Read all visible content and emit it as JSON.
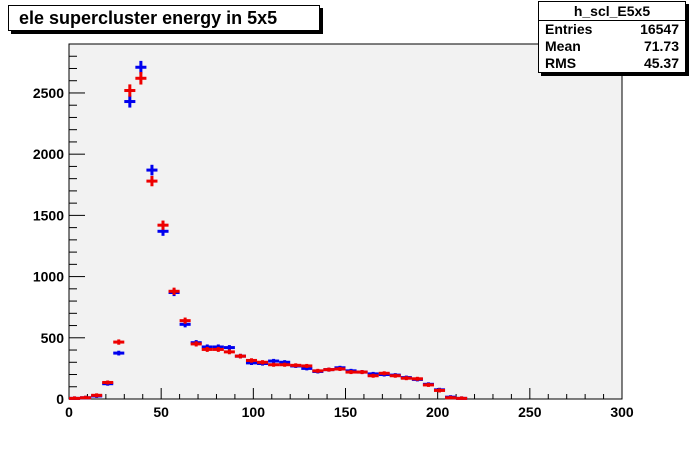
{
  "chart_data": {
    "type": "scatter",
    "title": "ele supercluster energy in 5x5",
    "xlabel": "",
    "ylabel": "",
    "xlim": [
      0,
      300
    ],
    "ylim": [
      0,
      2900
    ],
    "x_ticks": [
      0,
      50,
      100,
      150,
      200,
      250,
      300
    ],
    "y_ticks": [
      0,
      500,
      1000,
      1500,
      2000,
      2500
    ],
    "bin_width": 6,
    "grid": false,
    "stats_box": {
      "name": "h_scl_E5x5",
      "rows": [
        {
          "label": "Entries",
          "value": "16547"
        },
        {
          "label": "Mean",
          "value": "71.73"
        },
        {
          "label": "RMS",
          "value": "45.37"
        }
      ]
    },
    "series": [
      {
        "color": "#0000ee",
        "x": [
          3,
          9,
          15,
          21,
          27,
          33,
          39,
          45,
          51,
          57,
          63,
          69,
          75,
          81,
          87,
          93,
          99,
          105,
          111,
          117,
          123,
          129,
          135,
          141,
          147,
          153,
          159,
          165,
          171,
          177,
          183,
          189,
          195,
          201,
          207,
          213
        ],
        "y": [
          5,
          10,
          25,
          125,
          375,
          2430,
          2710,
          1870,
          1370,
          870,
          610,
          460,
          425,
          425,
          420,
          350,
          295,
          290,
          310,
          300,
          270,
          250,
          225,
          240,
          255,
          230,
          220,
          205,
          200,
          195,
          175,
          160,
          120,
          75,
          15,
          5
        ]
      },
      {
        "color": "#ee0000",
        "x": [
          3,
          9,
          15,
          21,
          27,
          33,
          39,
          45,
          51,
          57,
          63,
          69,
          75,
          81,
          87,
          93,
          99,
          105,
          111,
          117,
          123,
          129,
          135,
          141,
          147,
          153,
          159,
          165,
          171,
          177,
          183,
          189,
          195,
          201,
          207,
          213
        ],
        "y": [
          5,
          10,
          30,
          135,
          465,
          2520,
          2620,
          1780,
          1420,
          880,
          640,
          450,
          405,
          405,
          385,
          350,
          315,
          300,
          280,
          280,
          275,
          270,
          230,
          240,
          245,
          220,
          220,
          190,
          210,
          190,
          170,
          165,
          115,
          70,
          10,
          5
        ]
      }
    ]
  }
}
